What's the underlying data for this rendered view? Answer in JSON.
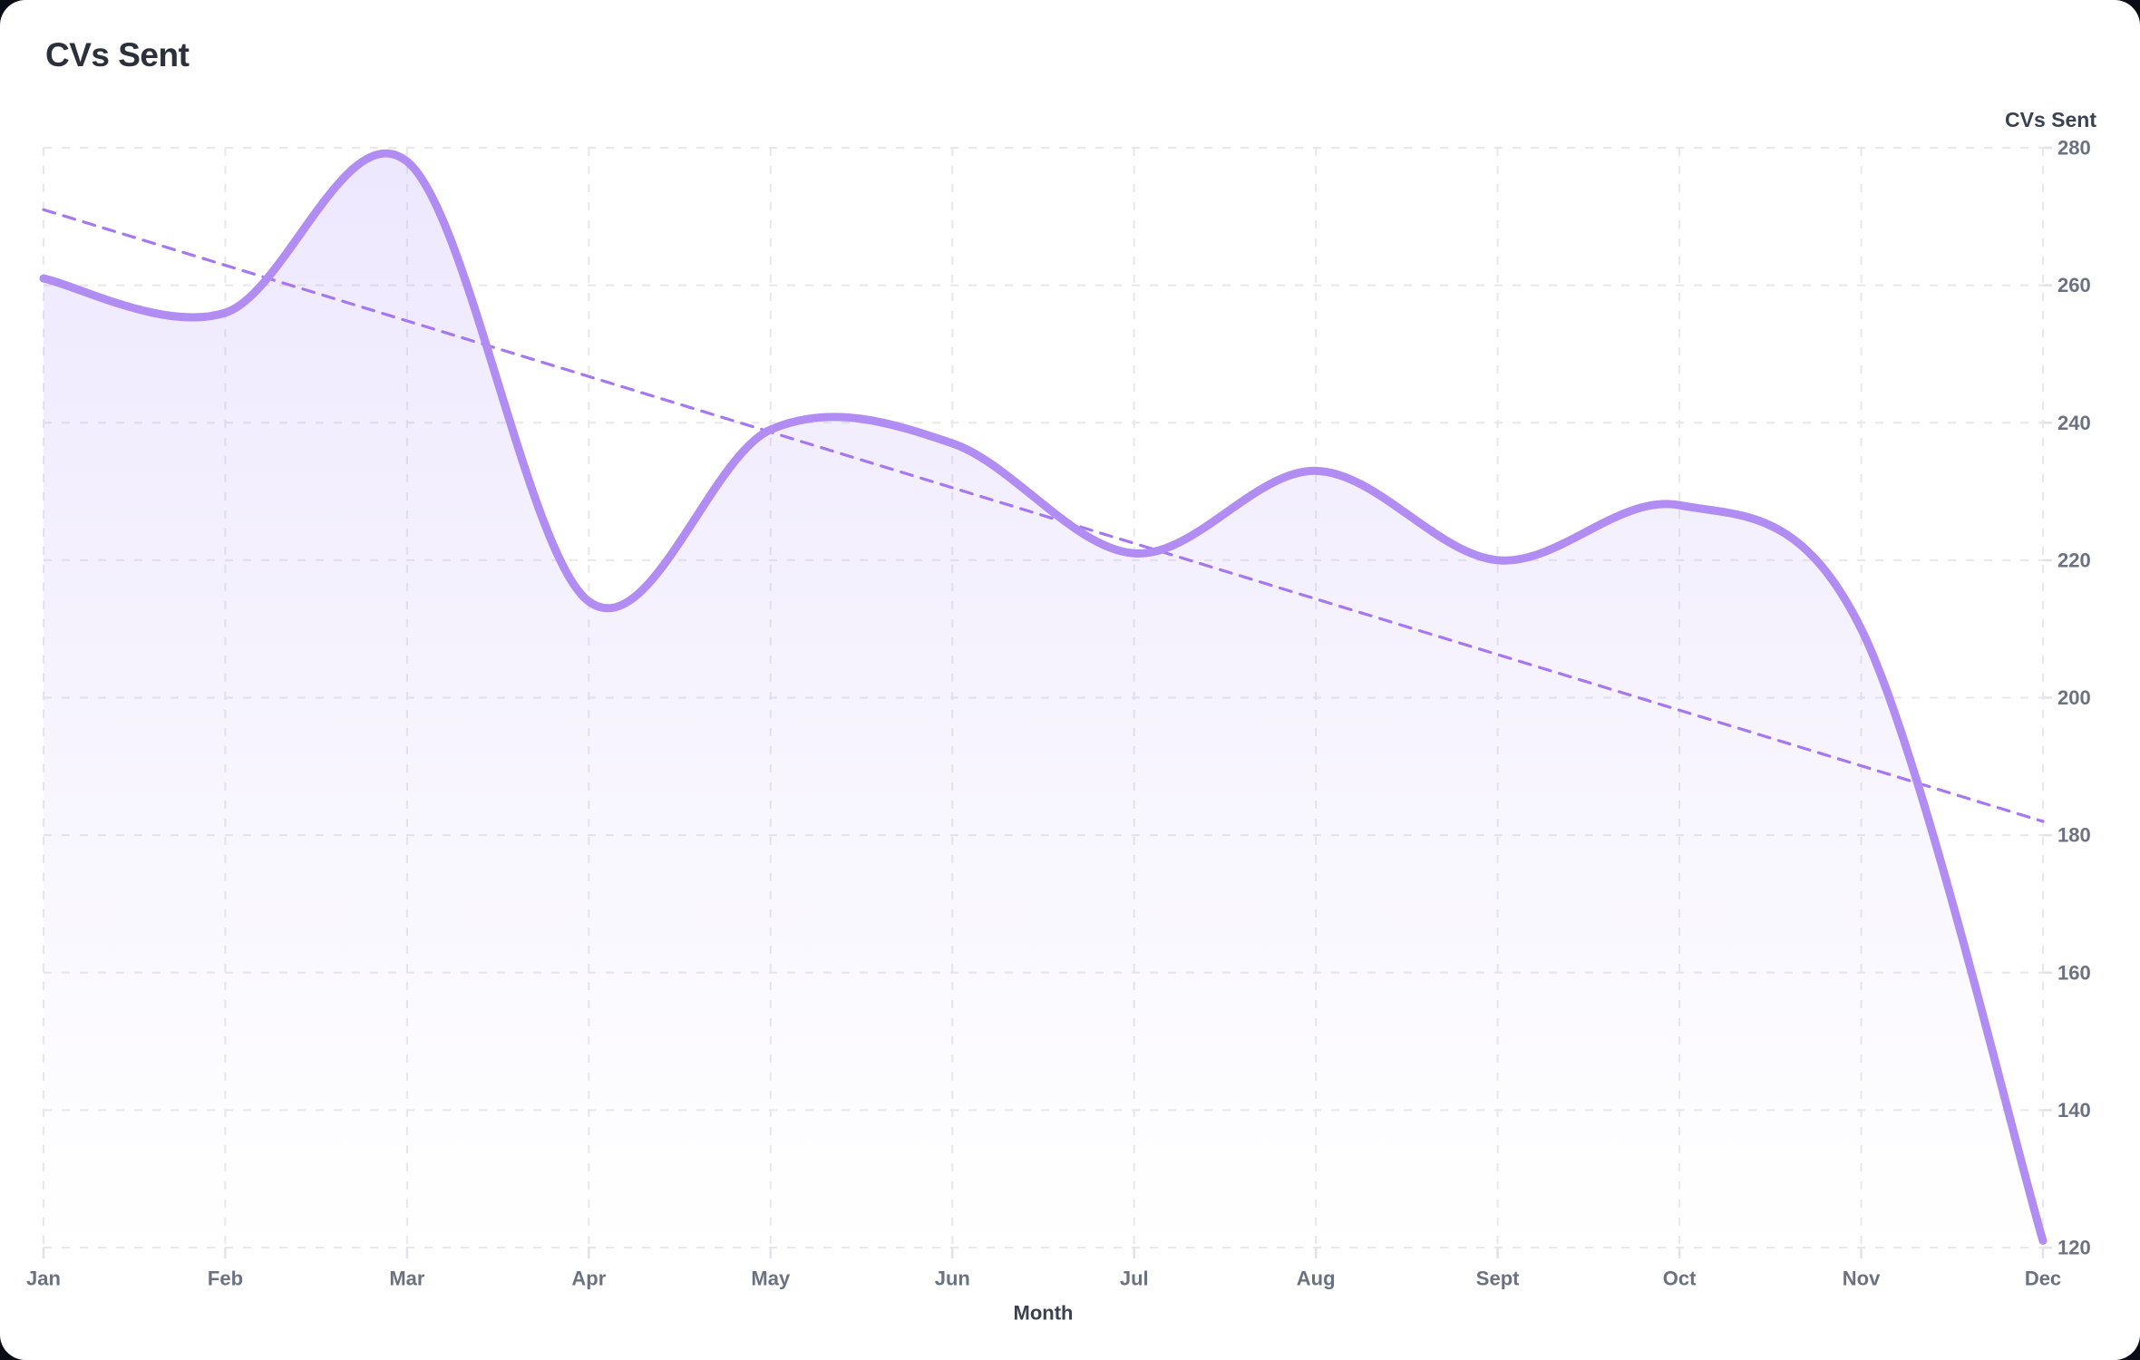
{
  "page": {
    "outer_background": "#0a0d16",
    "card_background": "#ffffff"
  },
  "header": {
    "title": "CVs Sent"
  },
  "chart_data": {
    "type": "line",
    "title": "CVs Sent",
    "xlabel": "Month",
    "series_header": "CVs Sent",
    "x_categories": [
      "Jan",
      "Feb",
      "Mar",
      "Apr",
      "May",
      "Jun",
      "Jul",
      "Aug",
      "Sept",
      "Oct",
      "Nov",
      "Dec"
    ],
    "series": [
      {
        "name": "CVs Sent",
        "values": [
          261,
          256,
          278,
          214,
          239,
          237,
          221,
          233,
          220,
          228,
          210,
          121
        ],
        "color": "#b18cf2",
        "line_width": 9,
        "smooth": true,
        "area_fill": true,
        "area_color": "#a78bfa",
        "area_opacity_top": 0.2,
        "area_opacity_bottom": 0
      }
    ],
    "trendline": {
      "start_value": 271,
      "end_value": 182,
      "style": "dashed",
      "color": "#a678f0",
      "width": 3.2
    },
    "ylim": [
      120,
      280
    ],
    "yticks": [
      280,
      260,
      240,
      220,
      200,
      180,
      160,
      140,
      120
    ],
    "grid": true,
    "grid_color": "#e8e8ec",
    "grid_style": "dashed",
    "tick_color": "#e2e2e8",
    "legend_position": "none"
  }
}
